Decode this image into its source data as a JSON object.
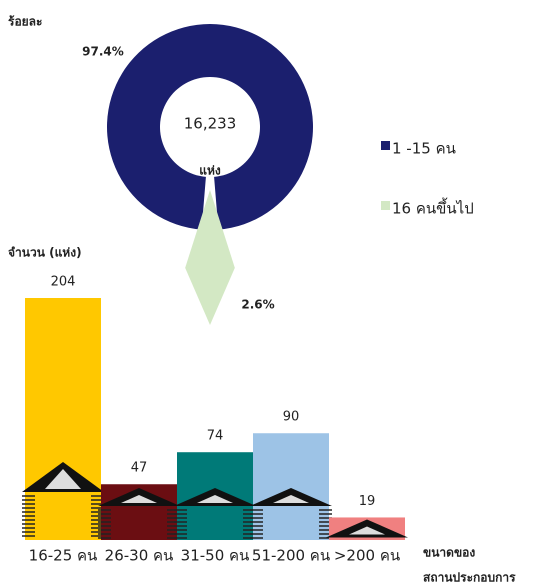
{
  "chart_data": [
    {
      "type": "pie",
      "title": "ร้อยละ",
      "categories": [
        "1 -15 คน",
        "16 คนขึ้นไป"
      ],
      "values": [
        97.4,
        2.6
      ],
      "value_labels": [
        "97.4%",
        "2.6%"
      ],
      "colors": [
        "#1b1f6e",
        "#d3e8c4"
      ],
      "center_text": [
        "16,233",
        "แห่ง"
      ]
    },
    {
      "type": "bar",
      "ylabel": "จำนวน (แห่ง)",
      "xlabel": [
        "ขนาดของ",
        "สถานประกอบการ"
      ],
      "categories": [
        "16-25 คน",
        "26-30 คน",
        "31-50 คน",
        "51-200 คน",
        ">200 คน"
      ],
      "values": [
        204,
        47,
        74,
        90,
        19
      ],
      "colors": [
        "#ffc800",
        "#6b0e12",
        "#007a78",
        "#9dc3e6",
        "#f08080"
      ]
    }
  ]
}
